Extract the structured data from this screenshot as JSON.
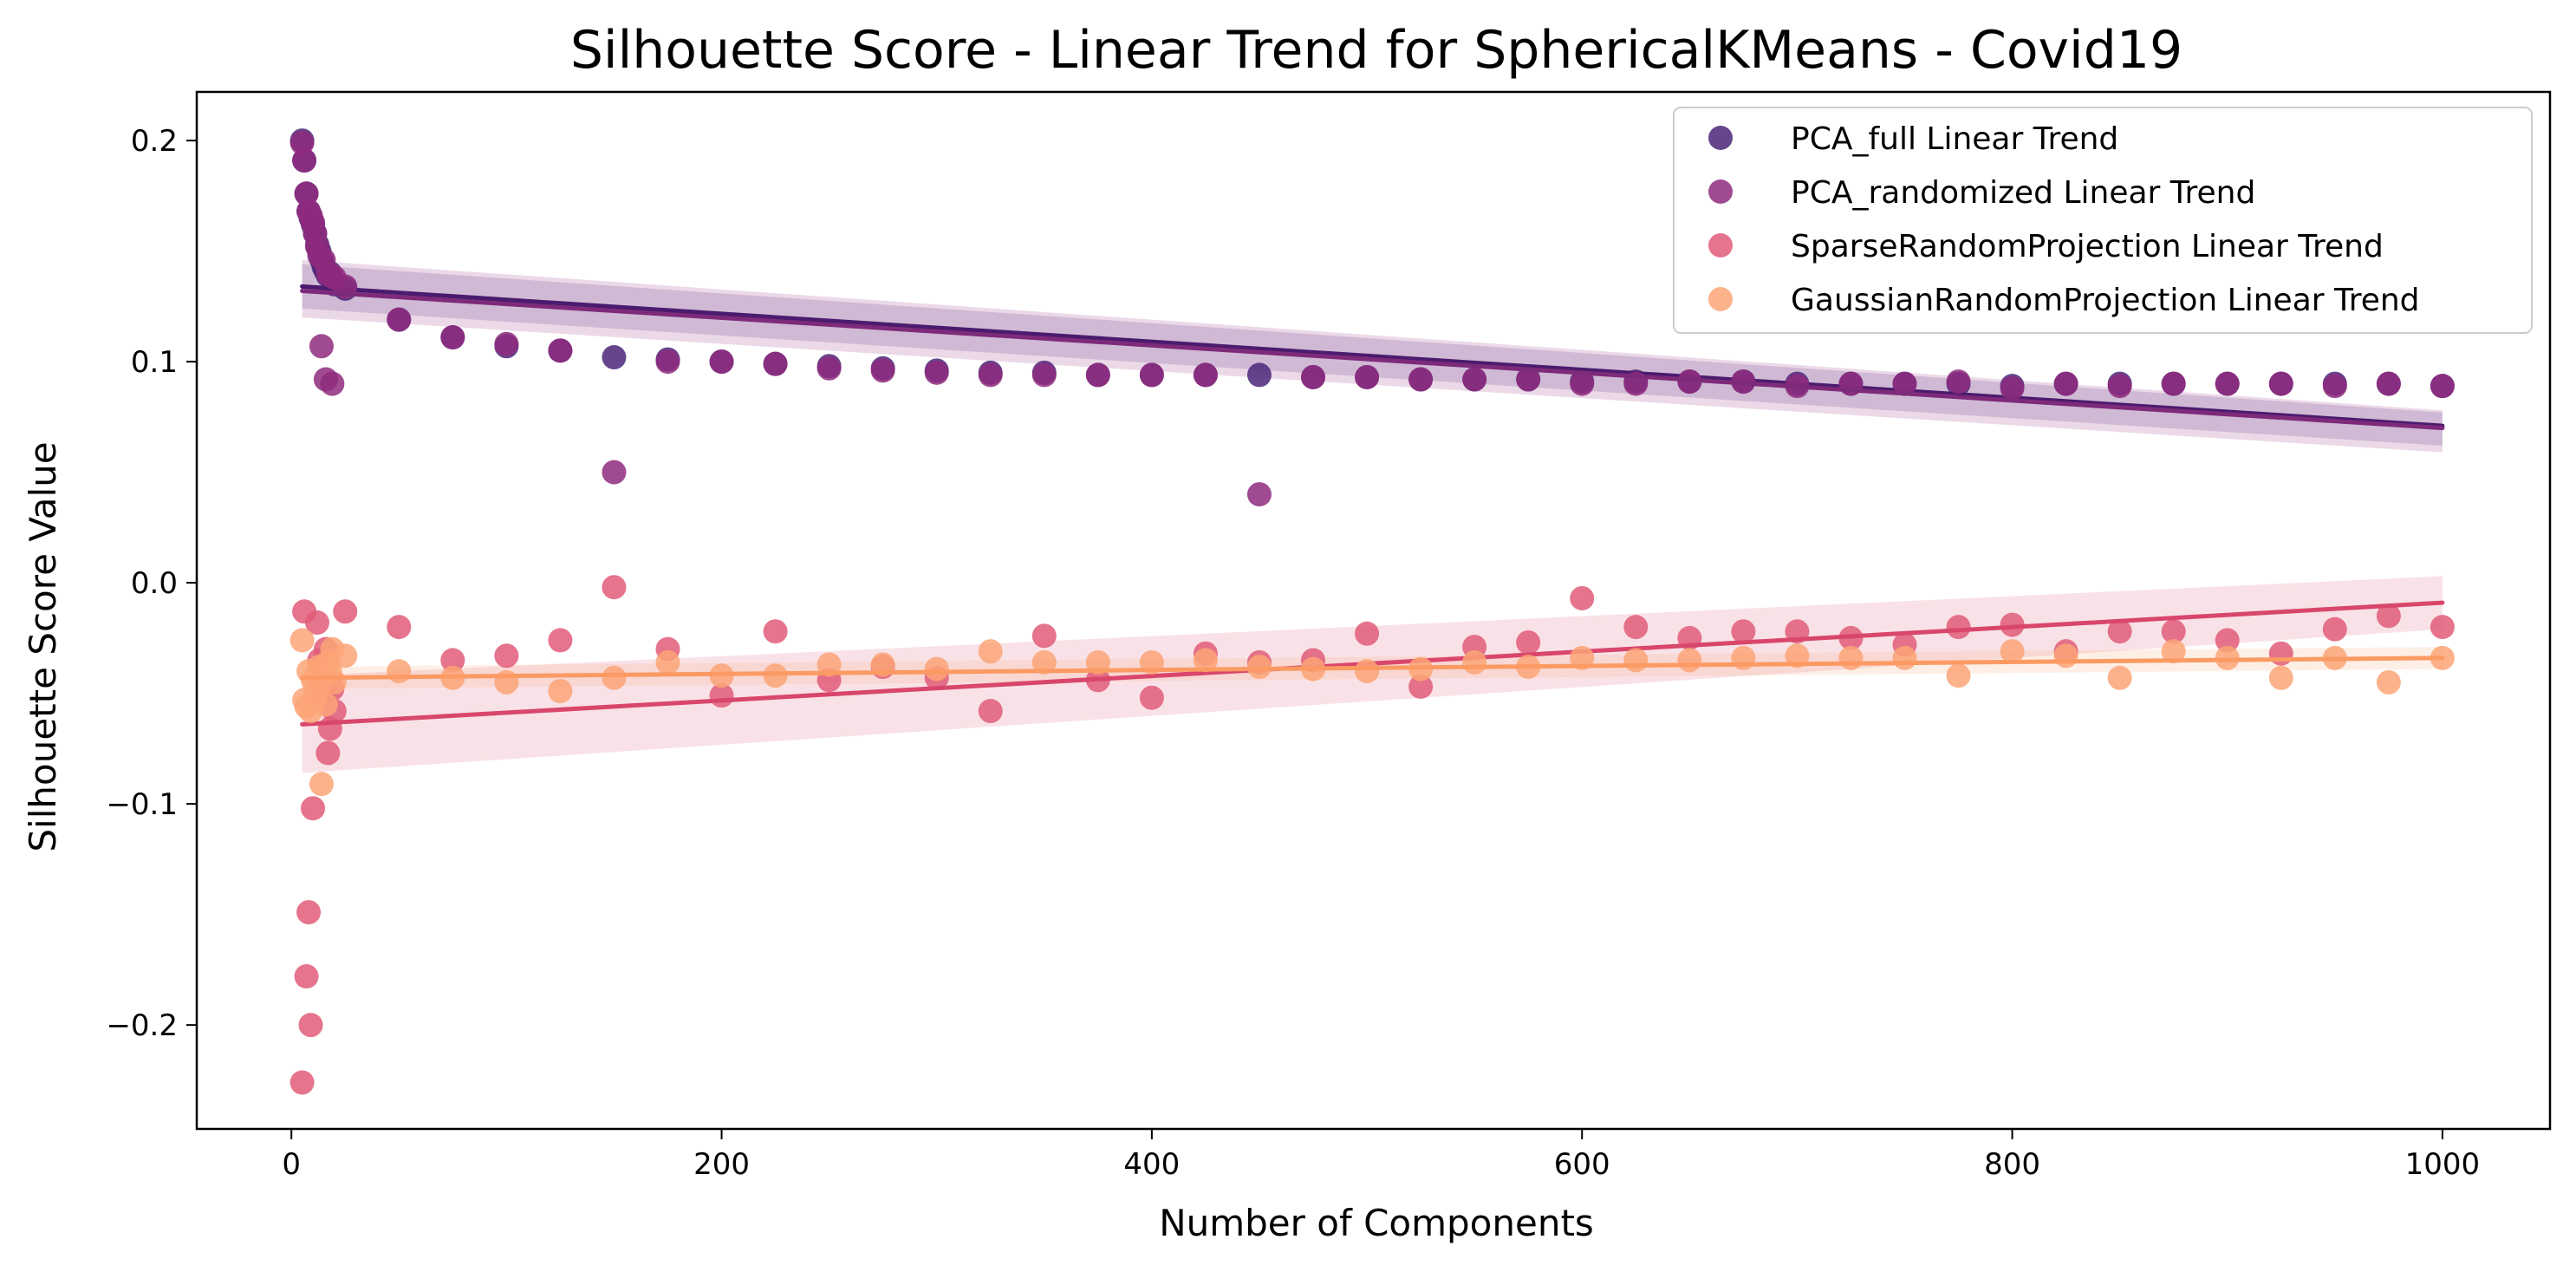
{
  "chart_data": {
    "type": "scatter",
    "title": "Silhouette Score - Linear Trend for SphericalKMeans - Covid19",
    "xlabel": "Number of Components",
    "ylabel": "Silhouette Score Value",
    "xlim": [
      -44,
      1050
    ],
    "ylim": [
      -0.247,
      0.222
    ],
    "xticks": [
      0,
      200,
      400,
      600,
      800,
      1000
    ],
    "xtick_labels": [
      "0",
      "200",
      "400",
      "600",
      "800",
      "1000"
    ],
    "yticks": [
      -0.2,
      -0.1,
      0.0,
      0.1,
      0.2
    ],
    "ytick_labels": [
      "−0.2",
      "−0.1",
      "0.0",
      "0.1",
      "0.2"
    ],
    "grid": false,
    "legend_position": "top-right",
    "series": [
      {
        "name": "PCA_full Linear Trend",
        "color": "#4a2678",
        "fit_line_color": "#4a1b6e",
        "trend": {
          "x": [
            5,
            1000
          ],
          "y": [
            0.134,
            0.071
          ]
        },
        "band": {
          "upper": [
            0.144,
            0.077
          ],
          "lower": [
            0.124,
            0.062
          ]
        },
        "x": [
          5,
          6,
          7,
          8,
          9,
          10,
          11,
          12,
          13,
          14,
          15,
          16,
          17,
          18,
          19,
          20,
          25,
          50,
          75,
          100,
          125,
          150,
          175,
          200,
          225,
          250,
          275,
          300,
          325,
          350,
          375,
          400,
          425,
          450,
          475,
          500,
          525,
          550,
          575,
          600,
          625,
          650,
          675,
          700,
          725,
          750,
          775,
          800,
          825,
          850,
          875,
          900,
          925,
          950,
          975,
          1000
        ],
        "y": [
          0.2,
          0.191,
          0.176,
          0.168,
          0.165,
          0.162,
          0.158,
          0.153,
          0.15,
          0.146,
          0.143,
          0.141,
          0.139,
          0.14,
          0.137,
          0.135,
          0.133,
          0.119,
          0.111,
          0.107,
          0.105,
          0.102,
          0.101,
          0.1,
          0.099,
          0.098,
          0.097,
          0.096,
          0.095,
          0.095,
          0.094,
          0.094,
          0.094,
          0.094,
          0.093,
          0.093,
          0.092,
          0.092,
          0.092,
          0.091,
          0.091,
          0.091,
          0.091,
          0.09,
          0.09,
          0.09,
          0.09,
          0.089,
          0.09,
          0.09,
          0.09,
          0.09,
          0.09,
          0.09,
          0.09,
          0.089
        ]
      },
      {
        "name": "PCA_randomized Linear Trend",
        "color": "#8e2a7e",
        "fit_line_color": "#7e2a7a",
        "trend": {
          "x": [
            5,
            1000
          ],
          "y": [
            0.132,
            0.07
          ]
        },
        "band": {
          "upper": [
            0.146,
            0.078
          ],
          "lower": [
            0.12,
            0.059
          ]
        },
        "x": [
          5,
          6,
          7,
          8,
          9,
          10,
          11,
          12,
          13,
          14,
          15,
          16,
          17,
          18,
          19,
          20,
          25,
          50,
          75,
          100,
          125,
          150,
          175,
          200,
          225,
          250,
          275,
          300,
          325,
          350,
          375,
          400,
          425,
          450,
          475,
          500,
          525,
          550,
          575,
          600,
          625,
          650,
          675,
          700,
          725,
          750,
          775,
          800,
          825,
          850,
          875,
          900,
          925,
          950,
          975,
          1000
        ],
        "y": [
          0.199,
          0.191,
          0.176,
          0.168,
          0.166,
          0.163,
          0.158,
          0.152,
          0.148,
          0.107,
          0.146,
          0.092,
          0.14,
          0.139,
          0.09,
          0.138,
          0.134,
          0.119,
          0.111,
          0.108,
          0.105,
          0.05,
          0.1,
          0.1,
          0.099,
          0.097,
          0.096,
          0.095,
          0.094,
          0.094,
          0.094,
          0.094,
          0.094,
          0.04,
          0.093,
          0.093,
          0.092,
          0.092,
          0.092,
          0.09,
          0.09,
          0.091,
          0.091,
          0.089,
          0.09,
          0.09,
          0.091,
          0.088,
          0.09,
          0.089,
          0.09,
          0.09,
          0.09,
          0.089,
          0.09,
          0.089
        ]
      },
      {
        "name": "SparseRandomProjection Linear Trend",
        "color": "#e05c78",
        "fit_line_color": "#d9466c",
        "trend": {
          "x": [
            5,
            1000
          ],
          "y": [
            -0.064,
            -0.009
          ]
        },
        "band": {
          "upper": [
            -0.042,
            0.003
          ],
          "lower": [
            -0.086,
            -0.021
          ]
        },
        "x": [
          5,
          6,
          7,
          8,
          9,
          10,
          11,
          12,
          13,
          14,
          15,
          16,
          17,
          18,
          19,
          20,
          25,
          50,
          75,
          100,
          125,
          150,
          175,
          200,
          225,
          250,
          275,
          300,
          325,
          350,
          375,
          400,
          425,
          450,
          475,
          500,
          525,
          550,
          575,
          600,
          625,
          650,
          675,
          700,
          725,
          750,
          775,
          800,
          825,
          850,
          875,
          900,
          925,
          950,
          975,
          1000
        ],
        "y": [
          -0.226,
          -0.013,
          -0.178,
          -0.149,
          -0.2,
          -0.102,
          -0.052,
          -0.018,
          -0.035,
          -0.045,
          -0.05,
          -0.03,
          -0.077,
          -0.066,
          -0.048,
          -0.058,
          -0.013,
          -0.02,
          -0.035,
          -0.033,
          -0.026,
          -0.002,
          -0.03,
          -0.051,
          -0.022,
          -0.044,
          -0.038,
          -0.043,
          -0.058,
          -0.024,
          -0.044,
          -0.052,
          -0.032,
          -0.036,
          -0.035,
          -0.023,
          -0.047,
          -0.029,
          -0.027,
          -0.007,
          -0.02,
          -0.025,
          -0.022,
          -0.022,
          -0.025,
          -0.028,
          -0.02,
          -0.019,
          -0.031,
          -0.022,
          -0.022,
          -0.026,
          -0.032,
          -0.021,
          -0.015,
          -0.02
        ]
      },
      {
        "name": "GaussianRandomProjection Linear Trend",
        "color": "#fca577",
        "fit_line_color": "#fb9a63",
        "trend": {
          "x": [
            5,
            1000
          ],
          "y": [
            -0.043,
            -0.034
          ]
        },
        "band": {
          "upper": [
            -0.038,
            -0.029
          ],
          "lower": [
            -0.048,
            -0.039
          ]
        },
        "x": [
          5,
          6,
          7,
          8,
          9,
          10,
          11,
          12,
          13,
          14,
          15,
          16,
          17,
          18,
          19,
          20,
          25,
          50,
          75,
          100,
          125,
          150,
          175,
          200,
          225,
          250,
          275,
          300,
          325,
          350,
          375,
          400,
          425,
          450,
          475,
          500,
          525,
          550,
          575,
          600,
          625,
          650,
          675,
          700,
          725,
          750,
          775,
          800,
          825,
          850,
          875,
          900,
          925,
          950,
          975,
          1000
        ],
        "y": [
          -0.026,
          -0.053,
          -0.056,
          -0.04,
          -0.058,
          -0.044,
          -0.052,
          -0.048,
          -0.038,
          -0.091,
          -0.042,
          -0.055,
          -0.036,
          -0.04,
          -0.03,
          -0.045,
          -0.033,
          -0.04,
          -0.043,
          -0.045,
          -0.049,
          -0.043,
          -0.036,
          -0.042,
          -0.042,
          -0.037,
          -0.037,
          -0.039,
          -0.031,
          -0.036,
          -0.036,
          -0.036,
          -0.035,
          -0.038,
          -0.039,
          -0.04,
          -0.039,
          -0.036,
          -0.038,
          -0.034,
          -0.035,
          -0.035,
          -0.034,
          -0.033,
          -0.034,
          -0.034,
          -0.042,
          -0.031,
          -0.033,
          -0.043,
          -0.031,
          -0.034,
          -0.043,
          -0.034,
          -0.045,
          -0.034
        ]
      }
    ]
  }
}
